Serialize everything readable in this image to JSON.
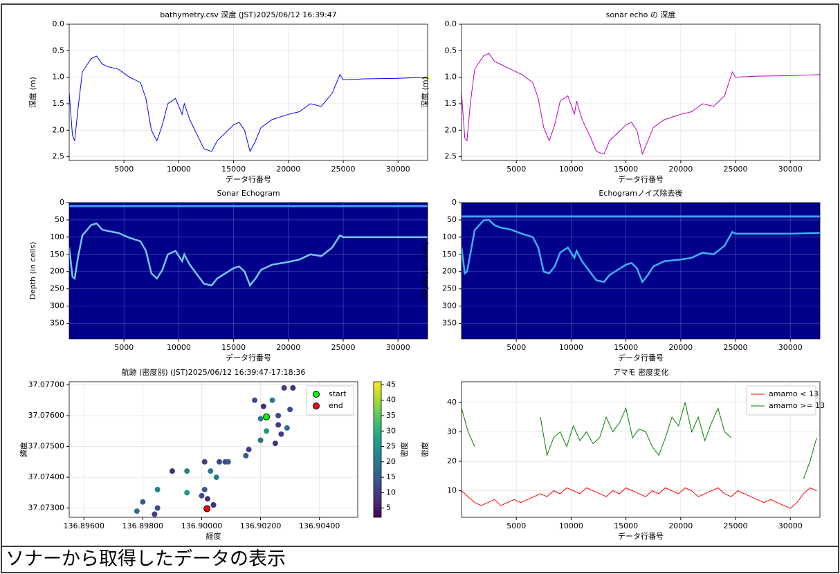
{
  "chart_data": [
    {
      "type": "line",
      "title": "bathymetry.csv 深度 (JST)2025/06/12 16:39:47",
      "x_label": "データ行番号",
      "y_label": "深度 (m)",
      "x": [
        0,
        300,
        500,
        800,
        1200,
        2000,
        2500,
        3000,
        3500,
        4500,
        5500,
        6500,
        7000,
        7500,
        8000,
        8500,
        9000,
        9700,
        10300,
        10500,
        11000,
        11700,
        12300,
        13000,
        13500,
        14000,
        15000,
        15500,
        16000,
        16500,
        17000,
        17500,
        18500,
        20000,
        21000,
        22000,
        23000,
        24000,
        24700,
        25000,
        27000,
        30000,
        32700
      ],
      "series": [
        {
          "color": "#0000ff",
          "values": [
            1.3,
            2.1,
            2.2,
            1.6,
            0.9,
            0.65,
            0.6,
            0.75,
            0.8,
            0.85,
            1.0,
            1.1,
            1.4,
            2.0,
            2.2,
            1.9,
            1.5,
            1.4,
            1.7,
            1.5,
            1.8,
            2.1,
            2.35,
            2.4,
            2.2,
            2.1,
            1.9,
            1.85,
            2.0,
            2.4,
            2.2,
            1.95,
            1.8,
            1.7,
            1.65,
            1.5,
            1.55,
            1.3,
            0.95,
            1.05,
            1.03,
            1.02,
            1.0
          ]
        }
      ],
      "xlim": [
        0,
        32700
      ],
      "xticks": [
        5000,
        10000,
        15000,
        20000,
        25000,
        30000
      ],
      "ylim": [
        0,
        2.57
      ],
      "y_inverted": true,
      "yticks": [
        {
          "value": 0,
          "label": "0.0"
        },
        0.5,
        {
          "value": 1,
          "label": "1.0"
        },
        1.5,
        {
          "value": 2,
          "label": "2.0"
        },
        2.5
      ],
      "grid": true
    },
    {
      "type": "line",
      "title": "sonar echo の 深度",
      "x_label": "データ行番号",
      "y_label": "深度 (m)",
      "x": [
        0,
        300,
        500,
        800,
        1200,
        2000,
        2500,
        3000,
        3500,
        4500,
        5500,
        6500,
        7000,
        7500,
        8000,
        8500,
        9000,
        9700,
        10300,
        10500,
        11000,
        11700,
        12300,
        13000,
        13500,
        14000,
        15000,
        15500,
        16000,
        16500,
        17000,
        17500,
        18500,
        20000,
        21000,
        22000,
        23000,
        24000,
        24700,
        25000,
        27000,
        30000,
        32700
      ],
      "series": [
        {
          "color": "#bf00bf",
          "values": [
            1.3,
            2.15,
            2.2,
            1.5,
            0.85,
            0.6,
            0.55,
            0.7,
            0.75,
            0.85,
            0.95,
            1.1,
            1.4,
            1.95,
            2.2,
            1.9,
            1.45,
            1.35,
            1.7,
            1.45,
            1.8,
            2.1,
            2.4,
            2.45,
            2.2,
            2.1,
            1.9,
            1.85,
            2.0,
            2.45,
            2.2,
            1.95,
            1.8,
            1.7,
            1.65,
            1.5,
            1.55,
            1.35,
            0.9,
            1.0,
            0.98,
            0.97,
            0.95
          ]
        }
      ],
      "xlim": [
        0,
        32700
      ],
      "xticks": [
        5000,
        10000,
        15000,
        20000,
        25000,
        30000
      ],
      "ylim": [
        0,
        2.57
      ],
      "y_inverted": true,
      "yticks": [
        {
          "value": 0,
          "label": "0.0"
        },
        0.5,
        {
          "value": 1,
          "label": "1.0"
        },
        1.5,
        {
          "value": 2,
          "label": "2.0"
        },
        2.5
      ],
      "grid": true
    },
    {
      "type": "echogram",
      "title": "Sonar Echogram",
      "x_label": "データ行番号",
      "y_label": "Depth (in cells)",
      "x": [
        0,
        300,
        500,
        800,
        1200,
        2000,
        2500,
        3000,
        3500,
        4500,
        5500,
        6500,
        7000,
        7500,
        8000,
        8500,
        9000,
        9700,
        10300,
        10500,
        11000,
        11700,
        12300,
        13000,
        13500,
        14000,
        15000,
        15500,
        16000,
        16500,
        17000,
        17500,
        18500,
        20000,
        21000,
        22000,
        23000,
        24000,
        24700,
        25000,
        27000,
        30000,
        32700
      ],
      "series": [
        {
          "color": "#7fdfff",
          "values": [
            130,
            215,
            220,
            160,
            95,
            65,
            60,
            78,
            82,
            88,
            102,
            112,
            140,
            205,
            220,
            195,
            150,
            140,
            170,
            150,
            180,
            210,
            235,
            240,
            220,
            210,
            190,
            185,
            200,
            240,
            220,
            195,
            180,
            172,
            165,
            150,
            155,
            130,
            95,
            100,
            100,
            100,
            100
          ]
        }
      ],
      "surface_line": 10,
      "background": "#00008b",
      "xlim": [
        0,
        32700
      ],
      "xticks": [
        5000,
        10000,
        15000,
        20000,
        25000,
        30000
      ],
      "ylim": [
        0,
        395
      ],
      "y_inverted": true,
      "yticks": [
        0,
        50,
        100,
        150,
        200,
        250,
        300,
        350
      ],
      "grid": true
    },
    {
      "type": "echogram",
      "title": "Echogramノイズ除去後",
      "x_label": "データ行番号",
      "y_label": "Depth (in cells)",
      "x": [
        0,
        300,
        500,
        800,
        1200,
        2000,
        2500,
        3000,
        3500,
        4500,
        5500,
        6500,
        7000,
        7500,
        8000,
        8500,
        9000,
        9700,
        10300,
        10500,
        11000,
        11700,
        12300,
        13000,
        13500,
        14000,
        15000,
        15500,
        16000,
        16500,
        17000,
        17500,
        18500,
        20000,
        21000,
        22000,
        23000,
        24000,
        24700,
        25000,
        27000,
        30000,
        32700
      ],
      "series": [
        {
          "color": "#40c8ff",
          "values": [
            130,
            205,
            200,
            150,
            80,
            52,
            50,
            65,
            72,
            78,
            90,
            100,
            130,
            200,
            205,
            185,
            145,
            130,
            160,
            140,
            170,
            200,
            225,
            230,
            210,
            200,
            180,
            175,
            190,
            230,
            210,
            185,
            170,
            165,
            160,
            145,
            150,
            125,
            85,
            90,
            90,
            90,
            88
          ]
        }
      ],
      "surface_line": 40,
      "background": "#00008b",
      "xlim": [
        0,
        32700
      ],
      "xticks": [
        5000,
        10000,
        15000,
        20000,
        25000,
        30000
      ],
      "ylim": [
        0,
        395
      ],
      "y_inverted": true,
      "yticks": [
        0,
        50,
        100,
        150,
        200,
        250,
        300,
        350
      ],
      "grid": true
    },
    {
      "type": "scatter",
      "title": "航跡 (密度別) (JST)2025/06/12 16:39:47-17:18:36",
      "x_label": "経度",
      "y_label": "緯度",
      "x": [
        136.9004,
        136.9002,
        136.9001,
        136.9003,
        136.9008,
        136.9016,
        136.902,
        136.9022,
        136.9025,
        136.9027,
        136.9026,
        136.9024,
        136.9028,
        136.9031,
        136.903,
        136.9029,
        136.9026,
        136.9021,
        136.9018,
        136.902,
        136.9015,
        136.9006,
        136.8995,
        136.8985,
        136.8978,
        136.8985,
        136.8995,
        136.9005,
        136.9009,
        136.9001,
        136.899,
        136.898,
        136.8984,
        136.9,
        136.9004
      ],
      "y": [
        37.0731,
        37.0733,
        37.0736,
        37.0742,
        37.0745,
        37.0749,
        37.0752,
        37.0755,
        37.0751,
        37.0754,
        37.076,
        37.0765,
        37.0769,
        37.0769,
        37.0762,
        37.0756,
        37.0757,
        37.0763,
        37.0765,
        37.0759,
        37.0747,
        37.0745,
        37.0742,
        37.0736,
        37.0729,
        37.073,
        37.0735,
        37.074,
        37.0745,
        37.0745,
        37.0742,
        37.0732,
        37.0728,
        37.0734,
        37.0731
      ],
      "density": [
        10,
        8,
        15,
        20,
        12,
        10,
        18,
        25,
        8,
        10,
        12,
        20,
        10,
        8,
        12,
        18,
        10,
        8,
        12,
        20,
        15,
        12,
        20,
        22,
        18,
        12,
        25,
        20,
        15,
        10,
        8,
        15,
        10,
        12,
        8
      ],
      "cmap": "viridis",
      "clim": [
        2,
        46
      ],
      "cticks": [
        5,
        10,
        15,
        20,
        25,
        30,
        35,
        40,
        45
      ],
      "clabel": "密度",
      "markers": [
        {
          "name": "start",
          "color": "#00ff00",
          "x": [
            136.9022
          ],
          "y": [
            37.07596
          ]
        },
        {
          "name": "end",
          "color": "#ff0000",
          "x": [
            136.90018
          ],
          "y": [
            37.07298
          ]
        }
      ],
      "legend": "upper right",
      "xlim": [
        136.8955,
        136.9053
      ],
      "xticks": [
        {
          "value": 136.896,
          "label": "136.89600"
        },
        {
          "value": 136.898,
          "label": "136.89800"
        },
        {
          "value": 136.9,
          "label": "136.90000"
        },
        {
          "value": 136.902,
          "label": "136.90200"
        },
        {
          "value": 136.904,
          "label": "136.90400"
        }
      ],
      "ylim": [
        37.0727,
        37.0771
      ],
      "yticks": [
        {
          "value": 37.073,
          "label": "37.07300"
        },
        {
          "value": 37.074,
          "label": "37.07400"
        },
        {
          "value": 37.075,
          "label": "37.07500"
        },
        {
          "value": 37.076,
          "label": "37.07600"
        },
        {
          "value": 37.077,
          "label": "37.07700"
        }
      ],
      "grid": true
    },
    {
      "type": "line",
      "title": "アマモ 密度変化",
      "x_label": "データ行番号",
      "y_label": "密度",
      "x": [
        0,
        600,
        1200,
        1800,
        2400,
        3000,
        3600,
        4200,
        4800,
        5400,
        6000,
        6600,
        7200,
        7800,
        8400,
        9000,
        9600,
        10200,
        10800,
        11400,
        12000,
        12600,
        13200,
        13800,
        14400,
        15000,
        15600,
        16200,
        16800,
        17400,
        18000,
        18600,
        19200,
        19800,
        20400,
        21000,
        21600,
        22200,
        22800,
        23400,
        24000,
        24600,
        25200,
        25800,
        26400,
        27000,
        27600,
        28200,
        28800,
        29400,
        30000,
        30600,
        31200,
        31800,
        32400
      ],
      "series": [
        {
          "name": "amamo < 13",
          "color": "#ff0000",
          "values": [
            10,
            8,
            6,
            5,
            6,
            7,
            5,
            6,
            7,
            6,
            7,
            8,
            9,
            8,
            10,
            9,
            11,
            10,
            9,
            11,
            10,
            9,
            8,
            10,
            9,
            11,
            10,
            9,
            8,
            10,
            9,
            11,
            10,
            9,
            11,
            10,
            8,
            9,
            10,
            11,
            9,
            8,
            10,
            9,
            8,
            7,
            6,
            7,
            6,
            5,
            4,
            6,
            9,
            11,
            10
          ]
        },
        {
          "name": "amamo >= 13",
          "color": "#008000",
          "values": [
            38,
            30,
            25,
            null,
            null,
            null,
            null,
            null,
            null,
            null,
            null,
            null,
            35,
            22,
            28,
            30,
            25,
            32,
            27,
            30,
            26,
            28,
            35,
            30,
            33,
            38,
            28,
            31,
            30,
            25,
            22,
            28,
            35,
            32,
            40,
            30,
            35,
            27,
            33,
            38,
            30,
            28,
            null,
            null,
            null,
            null,
            null,
            null,
            null,
            null,
            null,
            null,
            14,
            20,
            28
          ]
        }
      ],
      "legend": "upper right",
      "xlim": [
        0,
        32700
      ],
      "xticks": [
        5000,
        10000,
        15000,
        20000,
        25000,
        30000
      ],
      "ylim": [
        1,
        47
      ],
      "yticks": [
        10,
        20,
        30,
        40
      ],
      "grid": true
    }
  ],
  "caption": "ソナーから取得したデータの表示"
}
